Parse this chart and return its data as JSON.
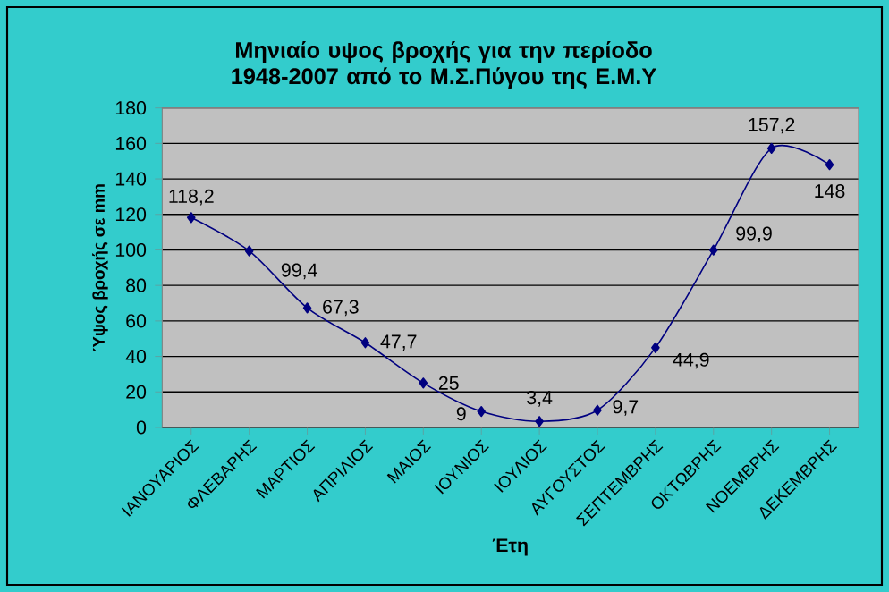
{
  "chart_data": {
    "type": "line",
    "title": "Μηνιαίο υψος βροχής για την περίοδο 1948-2007 από το Μ.Σ.Πύγου της Ε.Μ.Υ",
    "xlabel": "Έτη",
    "ylabel": "Ύψος βροχής σε mm",
    "categories": [
      "ΙΑΝΟΥΑΡΙΟΣ",
      "ΦΛΕΒΑΡΗΣ",
      "ΜΑΡΤΙΟΣ",
      "ΑΠΡΙΛΙΟΣ",
      "ΜΑΙΟΣ",
      "ΙΟΥΝΙΟΣ",
      "ΙΟΥΛΙΟΣ",
      "ΑΥΓΟΥΣΤΟΣ",
      "ΣΕΠΤΕΜΒΡΗΣ",
      "ΟΚΤΩΒΡΗΣ",
      "ΝΟΕΜΒΡΗΣ",
      "ΔΕΚΕΜΒΡΗΣ"
    ],
    "series": [
      {
        "color": "#000080",
        "values": [
          118.2,
          99.4,
          67.3,
          47.7,
          25,
          9,
          3.4,
          9.7,
          44.9,
          99.9,
          157.2,
          148
        ],
        "value_labels": [
          "118,2",
          "99,4",
          "67,3",
          "47,7",
          "25",
          "9",
          "3,4",
          "9,7",
          "44,9",
          "99,9",
          "157,2",
          "148"
        ]
      }
    ],
    "ylim": [
      0,
      180
    ],
    "yticks": [
      0,
      20,
      40,
      60,
      80,
      100,
      120,
      140,
      160,
      180
    ],
    "grid": "y",
    "marker": "diamond",
    "line_style": "solid"
  }
}
